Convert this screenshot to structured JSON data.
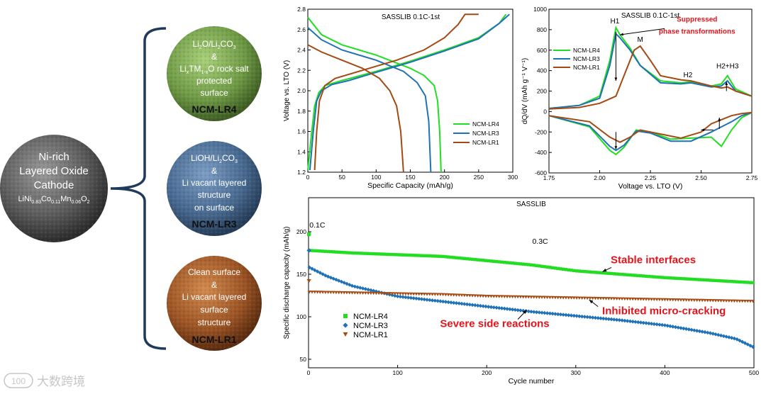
{
  "overview": {
    "center_sphere": {
      "line1": "Ni-rich",
      "line2": "Layered Oxide",
      "line3": "Cathode",
      "formula": {
        "base": "LiNi",
        "ni": "0.83",
        "co_label": "Co",
        "co": "0.11",
        "mn_label": "Mn",
        "mn": "0.06",
        "o_label": "O",
        "o": "2"
      }
    },
    "spheres": [
      {
        "id": "NCM-LR4",
        "color": "#7aa84f",
        "line1_a": "Li",
        "line1_sub1": "2",
        "line1_b": "O/Li",
        "line1_sub2": "2",
        "line1_c": "CO",
        "line1_sub3": "3",
        "amp": "&",
        "line3_a": "Li",
        "line3_sub1": "x",
        "line3_b": "TM",
        "line3_sub2": "1-x",
        "line3_c": "O rock salt",
        "line4": "protected",
        "line5": "surface",
        "name": "NCM-LR4"
      },
      {
        "id": "NCM-LR3",
        "color": "#4a6f96",
        "line1": "LiOH/Li",
        "line1_sub": "2",
        "line1_c": "CO",
        "line1_sub2": "3",
        "amp": "&",
        "line3": "Li vacant layered",
        "line4": "structure",
        "line5": "on surface",
        "name": "NCM-LR3"
      },
      {
        "id": "NCM-LR1",
        "color": "#a55f2b",
        "line1": "Clean surface",
        "amp": "&",
        "line3": "Li vacant layered",
        "line4": "surface",
        "line5": "structure",
        "name": "NCM-LR1"
      }
    ],
    "watermark": "大数跨境",
    "watermark_badge": "100"
  },
  "series_colors": {
    "NCM-LR4": "#22dd22",
    "NCM-LR3": "#1f72b5",
    "NCM-LR1": "#a54a12"
  },
  "chart_data": [
    {
      "type": "line",
      "title": "SASSLIB 0.1C-1st",
      "xlabel": "Specific Capacity (mAh/g)",
      "ylabel": "Voltage vs. LTO (V)",
      "xlim": [
        0,
        300
      ],
      "ylim": [
        1.2,
        2.8
      ],
      "xticks": [
        0,
        50,
        100,
        150,
        200,
        250,
        300
      ],
      "yticks": [
        1.2,
        1.4,
        1.6,
        1.8,
        2.0,
        2.2,
        2.4,
        2.6,
        2.8
      ],
      "legend": [
        "NCM-LR4",
        "NCM-LR3",
        "NCM-LR1"
      ],
      "legend_position": "lower-right",
      "series": [
        {
          "name": "NCM-LR4",
          "charge": [
            [
              0,
              1.22
            ],
            [
              5,
              1.55
            ],
            [
              10,
              1.85
            ],
            [
              16,
              1.98
            ],
            [
              25,
              2.05
            ],
            [
              50,
              2.1
            ],
            [
              100,
              2.19
            ],
            [
              150,
              2.29
            ],
            [
              200,
              2.4
            ],
            [
              250,
              2.52
            ],
            [
              280,
              2.66
            ],
            [
              290,
              2.75
            ]
          ],
          "discharge": [
            [
              0,
              2.72
            ],
            [
              20,
              2.55
            ],
            [
              50,
              2.45
            ],
            [
              100,
              2.35
            ],
            [
              150,
              2.22
            ],
            [
              170,
              2.15
            ],
            [
              185,
              2.05
            ],
            [
              190,
              1.9
            ],
            [
              193,
              1.6
            ],
            [
              195,
              1.2
            ]
          ]
        },
        {
          "name": "NCM-LR3",
          "charge": [
            [
              3,
              1.22
            ],
            [
              8,
              1.6
            ],
            [
              13,
              1.9
            ],
            [
              20,
              2.0
            ],
            [
              35,
              2.06
            ],
            [
              60,
              2.1
            ],
            [
              100,
              2.18
            ],
            [
              150,
              2.28
            ],
            [
              200,
              2.39
            ],
            [
              250,
              2.51
            ],
            [
              280,
              2.66
            ],
            [
              295,
              2.75
            ]
          ],
          "discharge": [
            [
              0,
              2.62
            ],
            [
              20,
              2.5
            ],
            [
              50,
              2.4
            ],
            [
              100,
              2.3
            ],
            [
              140,
              2.19
            ],
            [
              160,
              2.08
            ],
            [
              172,
              1.95
            ],
            [
              177,
              1.7
            ],
            [
              180,
              1.2
            ]
          ]
        },
        {
          "name": "NCM-LR1",
          "charge": [
            [
              10,
              1.22
            ],
            [
              13,
              1.6
            ],
            [
              17,
              1.9
            ],
            [
              25,
              2.05
            ],
            [
              40,
              2.12
            ],
            [
              80,
              2.2
            ],
            [
              130,
              2.3
            ],
            [
              170,
              2.4
            ],
            [
              200,
              2.52
            ],
            [
              220,
              2.65
            ],
            [
              230,
              2.75
            ],
            [
              250,
              2.75
            ]
          ],
          "discharge": [
            [
              0,
              2.45
            ],
            [
              20,
              2.38
            ],
            [
              50,
              2.3
            ],
            [
              80,
              2.22
            ],
            [
              105,
              2.12
            ],
            [
              120,
              2.0
            ],
            [
              130,
              1.85
            ],
            [
              136,
              1.6
            ],
            [
              140,
              1.2
            ]
          ]
        }
      ]
    },
    {
      "type": "line",
      "title": "SASSLIB 0.1C-1st",
      "xlabel": "Voltage vs. LTO (V)",
      "ylabel": "dQ/dV (mAh g⁻¹ V⁻¹)",
      "xlim": [
        1.75,
        2.75
      ],
      "ylim": [
        -600,
        1000
      ],
      "xticks": [
        1.75,
        2.0,
        2.25,
        2.5,
        2.75
      ],
      "yticks": [
        -600,
        -400,
        -200,
        0,
        200,
        400,
        600,
        800,
        1000
      ],
      "legend": [
        "NCM-LR4",
        "NCM-LR3",
        "NCM-LR1"
      ],
      "legend_position": "top-left",
      "annotations": [
        "H1",
        "M",
        "H2",
        "H2+H3",
        "Suppressed",
        "phase transformations"
      ],
      "series": [
        {
          "name": "NCM-LR4",
          "charge": [
            [
              1.75,
              30
            ],
            [
              1.9,
              60
            ],
            [
              2.0,
              150
            ],
            [
              2.05,
              500
            ],
            [
              2.08,
              820
            ],
            [
              2.1,
              750
            ],
            [
              2.15,
              620
            ],
            [
              2.2,
              450
            ],
            [
              2.3,
              300
            ],
            [
              2.4,
              280
            ],
            [
              2.45,
              290
            ],
            [
              2.55,
              250
            ],
            [
              2.6,
              270
            ],
            [
              2.63,
              350
            ],
            [
              2.67,
              220
            ],
            [
              2.75,
              150
            ]
          ],
          "discharge": [
            [
              1.75,
              -40
            ],
            [
              1.95,
              -150
            ],
            [
              2.05,
              -380
            ],
            [
              2.08,
              -420
            ],
            [
              2.12,
              -350
            ],
            [
              2.18,
              -180
            ],
            [
              2.25,
              -200
            ],
            [
              2.35,
              -270
            ],
            [
              2.45,
              -260
            ],
            [
              2.55,
              -250
            ],
            [
              2.6,
              -340
            ],
            [
              2.65,
              -180
            ],
            [
              2.7,
              -60
            ],
            [
              2.75,
              -10
            ]
          ]
        },
        {
          "name": "NCM-LR3",
          "charge": [
            [
              1.75,
              30
            ],
            [
              1.9,
              60
            ],
            [
              2.0,
              130
            ],
            [
              2.05,
              450
            ],
            [
              2.08,
              760
            ],
            [
              2.1,
              720
            ],
            [
              2.15,
              600
            ],
            [
              2.2,
              450
            ],
            [
              2.3,
              280
            ],
            [
              2.4,
              270
            ],
            [
              2.45,
              280
            ],
            [
              2.55,
              240
            ],
            [
              2.6,
              250
            ],
            [
              2.63,
              300
            ],
            [
              2.67,
              200
            ],
            [
              2.75,
              150
            ]
          ],
          "discharge": [
            [
              1.75,
              -40
            ],
            [
              1.95,
              -140
            ],
            [
              2.05,
              -340
            ],
            [
              2.08,
              -380
            ],
            [
              2.12,
              -330
            ],
            [
              2.18,
              -190
            ],
            [
              2.25,
              -210
            ],
            [
              2.35,
              -290
            ],
            [
              2.45,
              -290
            ],
            [
              2.55,
              -200
            ],
            [
              2.6,
              -150
            ],
            [
              2.65,
              -100
            ],
            [
              2.7,
              -40
            ],
            [
              2.75,
              -10
            ]
          ]
        },
        {
          "name": "NCM-LR1",
          "charge": [
            [
              1.75,
              25
            ],
            [
              1.9,
              40
            ],
            [
              2.0,
              80
            ],
            [
              2.08,
              150
            ],
            [
              2.12,
              350
            ],
            [
              2.17,
              600
            ],
            [
              2.2,
              640
            ],
            [
              2.25,
              500
            ],
            [
              2.3,
              350
            ],
            [
              2.4,
              310
            ],
            [
              2.45,
              300
            ],
            [
              2.55,
              250
            ],
            [
              2.6,
              230
            ],
            [
              2.63,
              240
            ],
            [
              2.67,
              200
            ],
            [
              2.75,
              150
            ]
          ],
          "discharge": [
            [
              1.75,
              -40
            ],
            [
              1.95,
              -100
            ],
            [
              2.05,
              -250
            ],
            [
              2.1,
              -300
            ],
            [
              2.15,
              -250
            ],
            [
              2.2,
              -180
            ],
            [
              2.3,
              -220
            ],
            [
              2.4,
              -260
            ],
            [
              2.5,
              -200
            ],
            [
              2.55,
              -120
            ],
            [
              2.6,
              -80
            ],
            [
              2.65,
              -40
            ],
            [
              2.7,
              -20
            ],
            [
              2.75,
              -10
            ]
          ]
        }
      ]
    },
    {
      "type": "scatter",
      "title": "SASSLIB",
      "xlabel": "Cycle number",
      "ylabel": "Specific discharge capacity (mAh/g)",
      "xlim": [
        0,
        500
      ],
      "ylim": [
        40,
        240
      ],
      "xticks": [
        0,
        100,
        200,
        300,
        400,
        500
      ],
      "yticks": [
        50,
        100,
        150,
        200
      ],
      "legend": [
        "NCM-LR4",
        "NCM-LR3",
        "NCM-LR1"
      ],
      "legend_position": "bottom-left",
      "annotations": [
        "0.1C",
        "0.3C",
        "Stable interfaces",
        "Inhibited micro-cracking",
        "Severe side reactions"
      ],
      "first_cycle_0_1C": {
        "NCM-LR4": 197,
        "NCM-LR3": 178,
        "NCM-LR1": 142
      },
      "series": [
        {
          "name": "NCM-LR4",
          "marker": "square",
          "values": [
            [
              1,
              178
            ],
            [
              50,
              175
            ],
            [
              100,
              173
            ],
            [
              150,
              171
            ],
            [
              200,
              166
            ],
            [
              250,
              161
            ],
            [
              300,
              154
            ],
            [
              350,
              150
            ],
            [
              400,
              146
            ],
            [
              450,
              143
            ],
            [
              500,
              140
            ]
          ]
        },
        {
          "name": "NCM-LR3",
          "marker": "diamond",
          "values": [
            [
              1,
              158
            ],
            [
              20,
              148
            ],
            [
              50,
              136
            ],
            [
              100,
              124
            ],
            [
              150,
              118
            ],
            [
              200,
              112
            ],
            [
              250,
              106
            ],
            [
              300,
              101
            ],
            [
              350,
              96
            ],
            [
              400,
              90
            ],
            [
              450,
              81
            ],
            [
              480,
              74
            ],
            [
              500,
              64
            ]
          ]
        },
        {
          "name": "NCM-LR1",
          "marker": "triangle-down",
          "values": [
            [
              1,
              129
            ],
            [
              50,
              128
            ],
            [
              100,
              127
            ],
            [
              150,
              126
            ],
            [
              200,
              124
            ],
            [
              250,
              123
            ],
            [
              300,
              122
            ],
            [
              350,
              121
            ],
            [
              400,
              120
            ],
            [
              450,
              119
            ],
            [
              500,
              118
            ]
          ]
        }
      ]
    }
  ]
}
